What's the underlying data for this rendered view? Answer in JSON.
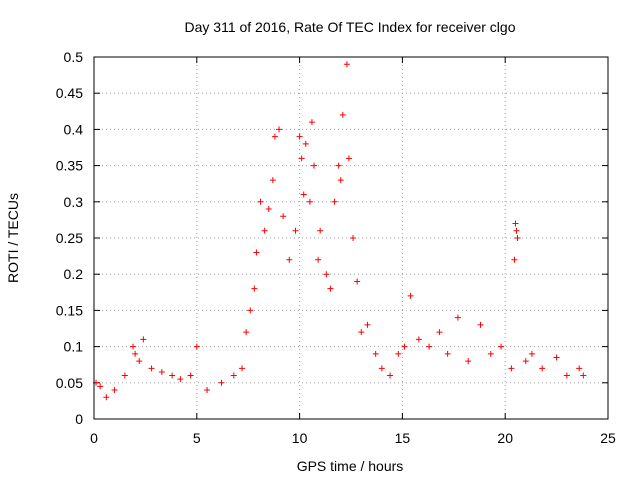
{
  "chart_data": {
    "type": "scatter",
    "title": "Day 311 of 2016, Rate Of TEC Index for receiver clgo",
    "xlabel": "GPS time / hours",
    "ylabel": "ROTI / TECUs",
    "xlim": [
      0,
      25
    ],
    "ylim": [
      0,
      0.5
    ],
    "xticks": [
      0,
      5,
      10,
      15,
      20,
      25
    ],
    "yticks": [
      0,
      0.05,
      0.1,
      0.15,
      0.2,
      0.25,
      0.3,
      0.35,
      0.4,
      0.45,
      0.5
    ],
    "ytick_labels": [
      "0",
      "0.05",
      "0.1",
      "0.15",
      "0.2",
      "0.25",
      "0.3",
      "0.35",
      "0.4",
      "0.45",
      "0.5"
    ],
    "grid": true,
    "marker": "+",
    "color": "#ff0000",
    "series": [
      {
        "name": "ROTI",
        "points": [
          [
            0.1,
            0.05
          ],
          [
            0.3,
            0.045
          ],
          [
            0.6,
            0.03
          ],
          [
            1.0,
            0.04
          ],
          [
            1.5,
            0.06
          ],
          [
            1.9,
            0.1
          ],
          [
            2.0,
            0.09
          ],
          [
            2.2,
            0.08
          ],
          [
            2.4,
            0.11
          ],
          [
            2.8,
            0.07
          ],
          [
            3.3,
            0.065
          ],
          [
            3.8,
            0.06
          ],
          [
            4.2,
            0.055
          ],
          [
            4.7,
            0.06
          ],
          [
            5.0,
            0.1
          ],
          [
            5.5,
            0.04
          ],
          [
            6.2,
            0.05
          ],
          [
            6.8,
            0.06
          ],
          [
            7.2,
            0.07
          ],
          [
            7.4,
            0.12
          ],
          [
            7.6,
            0.15
          ],
          [
            7.8,
            0.18
          ],
          [
            7.9,
            0.23
          ],
          [
            8.1,
            0.3
          ],
          [
            8.3,
            0.26
          ],
          [
            8.5,
            0.29
          ],
          [
            8.7,
            0.33
          ],
          [
            8.8,
            0.39
          ],
          [
            9.0,
            0.4
          ],
          [
            9.2,
            0.28
          ],
          [
            9.5,
            0.22
          ],
          [
            9.8,
            0.26
          ],
          [
            10.0,
            0.39
          ],
          [
            10.1,
            0.36
          ],
          [
            10.2,
            0.31
          ],
          [
            10.3,
            0.38
          ],
          [
            10.5,
            0.3
          ],
          [
            10.6,
            0.41
          ],
          [
            10.7,
            0.35
          ],
          [
            10.9,
            0.22
          ],
          [
            11.0,
            0.26
          ],
          [
            11.3,
            0.2
          ],
          [
            11.5,
            0.18
          ],
          [
            11.7,
            0.3
          ],
          [
            11.9,
            0.35
          ],
          [
            12.0,
            0.33
          ],
          [
            12.1,
            0.42
          ],
          [
            12.3,
            0.49
          ],
          [
            12.4,
            0.36
          ],
          [
            12.6,
            0.25
          ],
          [
            12.8,
            0.19
          ],
          [
            13.0,
            0.12
          ],
          [
            13.3,
            0.13
          ],
          [
            13.7,
            0.09
          ],
          [
            14.0,
            0.07
          ],
          [
            14.4,
            0.06
          ],
          [
            14.8,
            0.09
          ],
          [
            15.1,
            0.1
          ],
          [
            15.4,
            0.17
          ],
          [
            15.8,
            0.11
          ],
          [
            16.3,
            0.1
          ],
          [
            16.8,
            0.12
          ],
          [
            17.2,
            0.09
          ],
          [
            17.7,
            0.14
          ],
          [
            18.2,
            0.08
          ],
          [
            18.8,
            0.13
          ],
          [
            19.3,
            0.09
          ],
          [
            19.8,
            0.1
          ],
          [
            20.3,
            0.07
          ],
          [
            20.5,
            0.27
          ],
          [
            20.55,
            0.26
          ],
          [
            20.6,
            0.25
          ],
          [
            20.45,
            0.22
          ],
          [
            21.0,
            0.08
          ],
          [
            21.3,
            0.09
          ],
          [
            21.8,
            0.07
          ],
          [
            22.5,
            0.085
          ],
          [
            23.0,
            0.06
          ],
          [
            23.6,
            0.07
          ],
          [
            23.8,
            0.06
          ]
        ]
      }
    ]
  }
}
